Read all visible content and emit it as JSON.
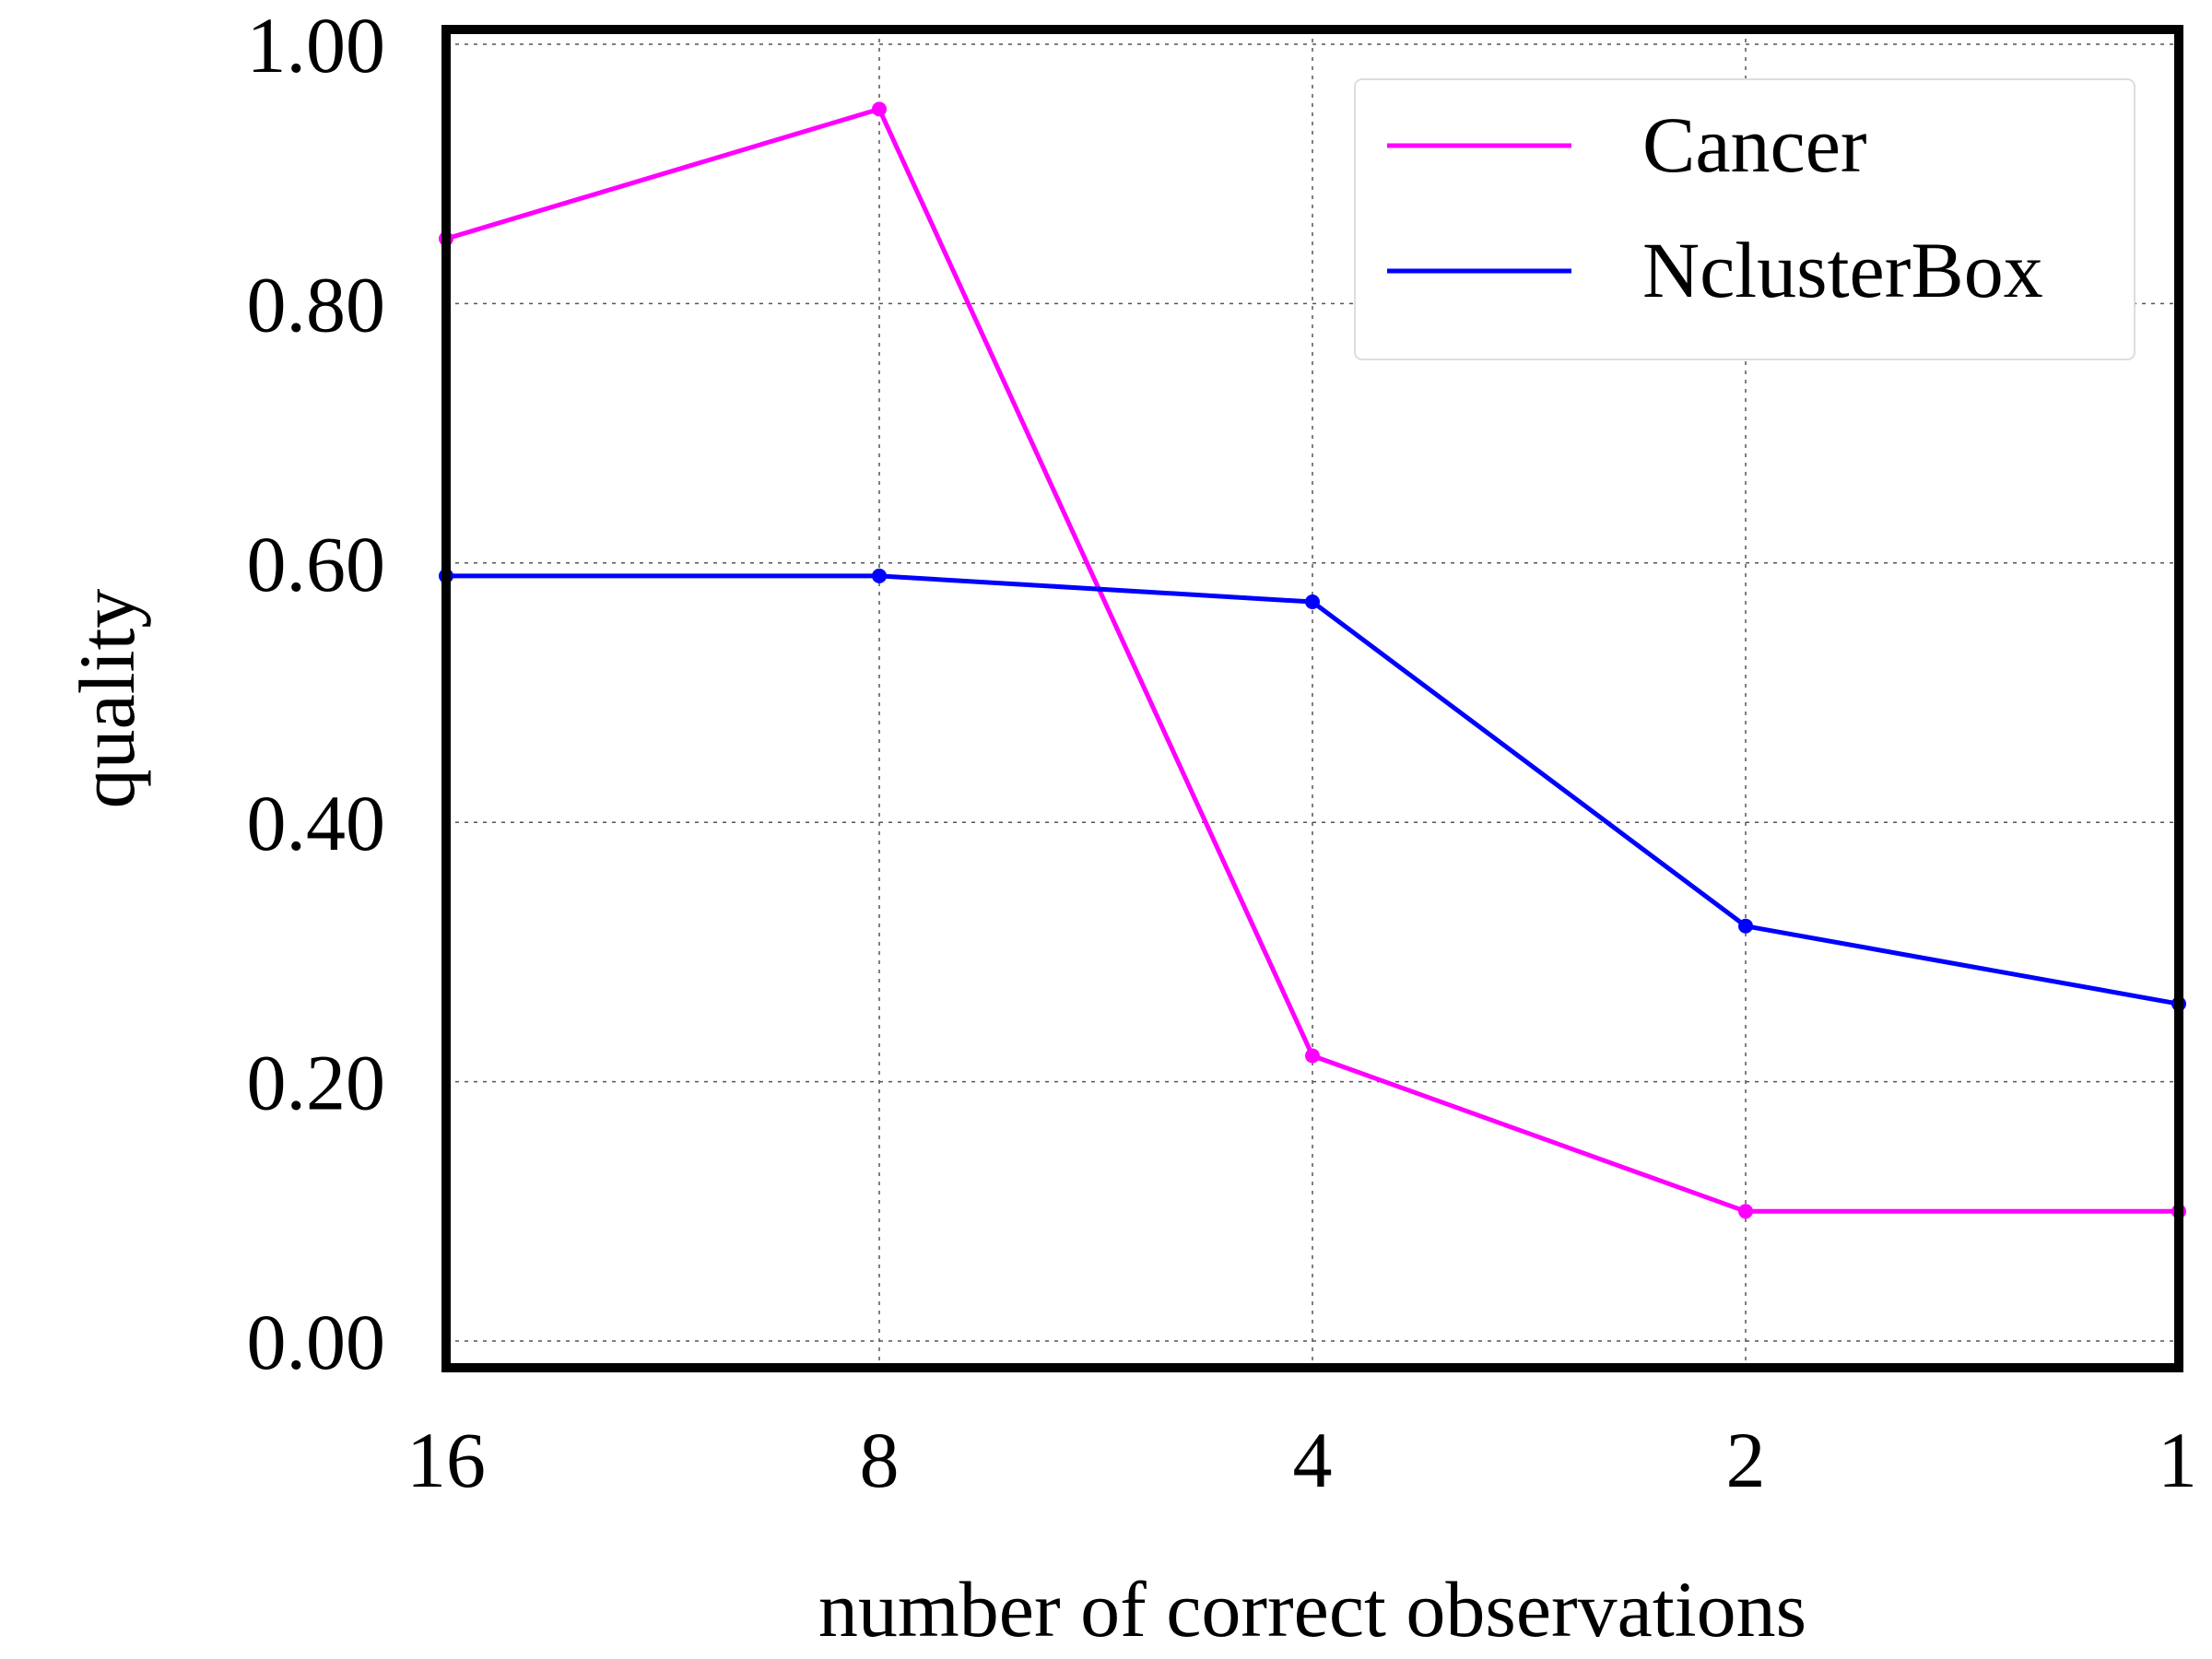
{
  "chart_data": {
    "type": "line",
    "x": [
      16,
      8,
      4,
      2,
      1
    ],
    "x_tick_labels": [
      "16",
      "8",
      "4",
      "2",
      "1"
    ],
    "xscale": "log2, reversed",
    "y_tick_labels": [
      "0.00",
      "0.20",
      "0.40",
      "0.60",
      "0.80",
      "1.00"
    ],
    "ylim": [
      0,
      1
    ],
    "xlabel": "number of correct observations",
    "ylabel": "quality",
    "grid": true,
    "legend_position": "top-right",
    "series": [
      {
        "name": "Cancer",
        "color": "#ff00ff",
        "values": [
          0.85,
          0.95,
          0.22,
          0.1,
          0.1
        ]
      },
      {
        "name": "NclusterBox",
        "color": "#0000ff",
        "values": [
          0.59,
          0.59,
          0.57,
          0.32,
          0.26
        ]
      }
    ]
  }
}
